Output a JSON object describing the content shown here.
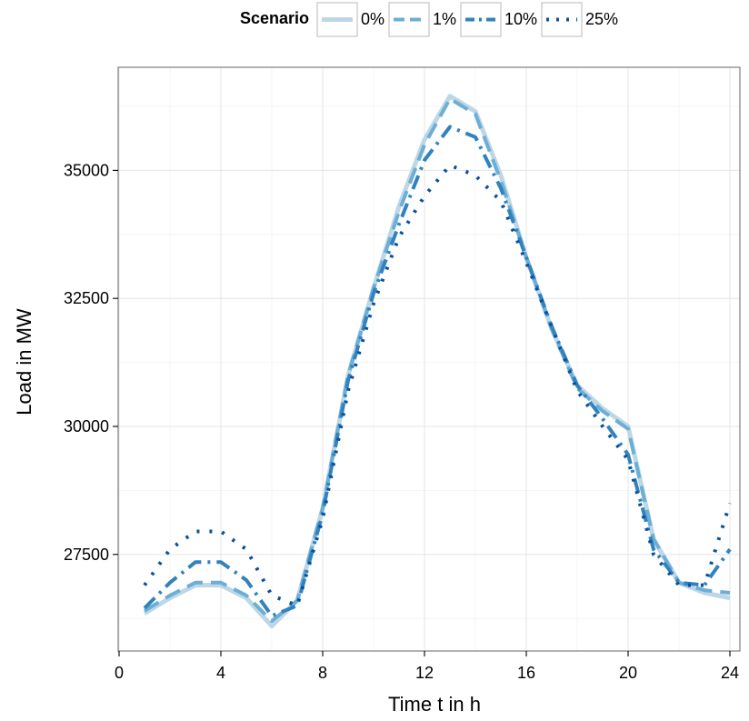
{
  "chart_data": {
    "type": "line",
    "xlabel": "Time t in h",
    "ylabel": "Load in MW",
    "xlim": [
      0,
      24
    ],
    "ylim": [
      26000,
      36600
    ],
    "x_ticks": [
      0,
      4,
      8,
      12,
      16,
      20,
      24
    ],
    "y_ticks": [
      27500,
      30000,
      32500,
      35000
    ],
    "x_tick_labels": [
      "0",
      "4",
      "8",
      "12",
      "16",
      "20",
      "24"
    ],
    "y_tick_labels": [
      "27500",
      "30000",
      "32500",
      "35000"
    ],
    "grid": true,
    "legend": {
      "title": "Scenario",
      "position": "top"
    },
    "x": [
      1,
      2,
      3,
      4,
      5,
      6,
      7,
      8,
      9,
      10,
      11,
      12,
      13,
      14,
      15,
      16,
      17,
      18,
      19,
      20,
      21,
      22,
      23,
      24
    ],
    "series": [
      {
        "name": "0%",
        "color": "#bdd7e7",
        "dash": "solid",
        "values": [
          26350,
          26650,
          26900,
          26900,
          26650,
          26100,
          26600,
          28400,
          31000,
          32700,
          34300,
          35600,
          36450,
          36150,
          34900,
          33300,
          31900,
          30800,
          30350,
          30000,
          27800,
          26950,
          26750,
          26650
        ]
      },
      {
        "name": "1%",
        "color": "#6baed6",
        "dash": "dash",
        "values": [
          26400,
          26700,
          26950,
          26950,
          26700,
          26200,
          26600,
          28400,
          31000,
          32700,
          34200,
          35500,
          36400,
          36100,
          34800,
          33300,
          31900,
          30750,
          30300,
          29950,
          27800,
          26950,
          26800,
          26750
        ]
      },
      {
        "name": "10%",
        "color": "#3182bd",
        "dash": "dashdot",
        "values": [
          26450,
          26950,
          27350,
          27350,
          27000,
          26300,
          26500,
          28300,
          30900,
          32600,
          33950,
          35200,
          35850,
          35650,
          34650,
          33300,
          31950,
          30800,
          30150,
          29450,
          27600,
          26950,
          26900,
          27600
        ]
      },
      {
        "name": "25%",
        "color": "#08519c",
        "dash": "dot",
        "values": [
          26900,
          27600,
          27950,
          27950,
          27600,
          26700,
          26500,
          28200,
          30700,
          32400,
          33700,
          34500,
          35100,
          34900,
          34400,
          33200,
          31950,
          30700,
          30000,
          29350,
          27500,
          26900,
          26900,
          28500
        ]
      }
    ]
  }
}
